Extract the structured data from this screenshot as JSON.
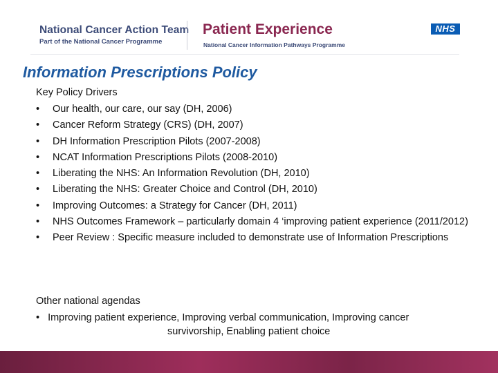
{
  "header": {
    "org_name": "National Cancer Action Team",
    "org_sub": "Part of the National Cancer Programme",
    "title": "Patient Experience",
    "subtitle": "National Cancer Information Pathways Programme",
    "logo_text": "NHS",
    "colors": {
      "org": "#3b4a77",
      "title": "#8a2750",
      "logo_bg": "#0a5cb4"
    }
  },
  "slide": {
    "title": "Information Prescriptions Policy",
    "title_color": "#1f5aa0",
    "drivers_heading": "Key Policy Drivers",
    "bullet_glyph": "•",
    "drivers": [
      "Our health, our care, our say  (DH, 2006)",
      "Cancer Reform Strategy (CRS) (DH, 2007)",
      "DH Information Prescription Pilots (2007-2008)",
      "NCAT Information Prescriptions Pilots (2008-2010)",
      "Liberating the NHS: An Information Revolution (DH, 2010)",
      "Liberating the NHS: Greater Choice and Control (DH, 2010)",
      "Improving Outcomes: a Strategy for Cancer (DH, 2011)",
      "NHS Outcomes Framework – particularly domain 4 ‘improving patient experience (2011/2012)",
      "Peer Review : Specific measure included to demonstrate use of Information Prescriptions"
    ],
    "agendas_heading": "Other national agendas",
    "agenda_line1": "Improving patient experience, Improving verbal communication, Improving cancer",
    "agenda_line2": "survivorship, Enabling patient choice"
  },
  "footer": {
    "band_color": "#8a2750"
  }
}
